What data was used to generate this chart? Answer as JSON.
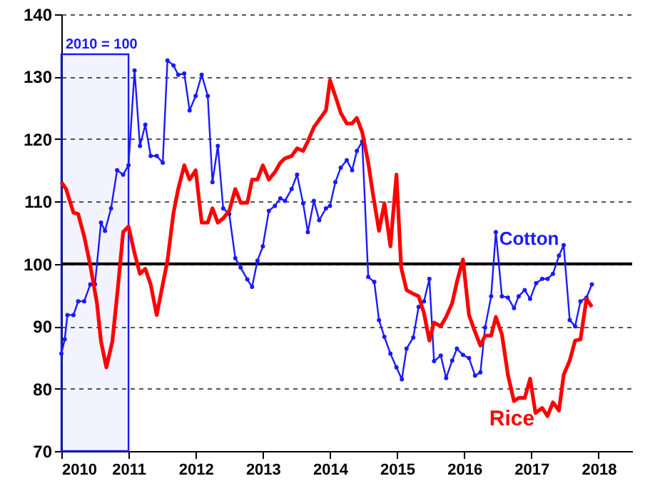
{
  "chart_data": {
    "type": "line",
    "xlim": [
      2010,
      2018.5
    ],
    "xticks": [
      2010,
      2011,
      2012,
      2013,
      2014,
      2015,
      2016,
      2017,
      2018
    ],
    "ylim": [
      70,
      140
    ],
    "yticks": [
      70,
      80,
      90,
      100,
      110,
      120,
      130,
      140
    ],
    "grid": "y",
    "line_style": "solid",
    "ref_lines": [
      {
        "axis": "y",
        "value": 100,
        "color": "#000000"
      }
    ],
    "bands": [
      {
        "axis": "x",
        "from": 2010,
        "to": 2011,
        "label": "2010 = 100",
        "color": "#1a1aff"
      }
    ],
    "series": [
      {
        "name": "Cotton",
        "color": "#1a1aff",
        "marker": "circle",
        "x": [
          2010.0,
          2010.05,
          2010.09,
          2010.18,
          2010.25,
          2010.34,
          2010.43,
          2010.5,
          2010.59,
          2010.65,
          2010.74,
          2010.83,
          2010.92,
          2011.0,
          2011.09,
          2011.17,
          2011.25,
          2011.33,
          2011.42,
          2011.51,
          2011.58,
          2011.67,
          2011.74,
          2011.83,
          2011.91,
          2012.0,
          2012.09,
          2012.18,
          2012.25,
          2012.33,
          2012.41,
          2012.5,
          2012.59,
          2012.67,
          2012.77,
          2012.84,
          2012.92,
          2013.0,
          2013.09,
          2013.18,
          2013.26,
          2013.33,
          2013.43,
          2013.51,
          2013.6,
          2013.67,
          2013.76,
          2013.84,
          2013.94,
          2014.0,
          2014.08,
          2014.16,
          2014.25,
          2014.33,
          2014.4,
          2014.48,
          2014.57,
          2014.66,
          2014.73,
          2014.81,
          2014.9,
          2014.99,
          2015.07,
          2015.14,
          2015.24,
          2015.32,
          2015.4,
          2015.48,
          2015.55,
          2015.65,
          2015.73,
          2015.82,
          2015.89,
          2015.98,
          2016.07,
          2016.16,
          2016.24,
          2016.31,
          2016.4,
          2016.47,
          2016.56,
          2016.65,
          2016.74,
          2016.81,
          2016.9,
          2016.98,
          2017.07,
          2017.16,
          2017.24,
          2017.32,
          2017.41,
          2017.48,
          2017.57,
          2017.65,
          2017.73,
          2017.82,
          2017.9
        ],
        "values": [
          85.6,
          87.9,
          91.8,
          91.8,
          94,
          94,
          96.7,
          96.7,
          106.6,
          105.3,
          108.9,
          115,
          114.3,
          115.8,
          131,
          118.9,
          122.3,
          117.3,
          117.3,
          116.2,
          132.6,
          131.8,
          130.3,
          130.5,
          124.6,
          126.9,
          130.3,
          126.9,
          113.1,
          118.9,
          108.9,
          108,
          100.9,
          99.4,
          97.5,
          96.3,
          100.5,
          102.8,
          108.5,
          109.3,
          110.5,
          110.1,
          112,
          114.3,
          109.7,
          105.1,
          110.1,
          107,
          108.9,
          109.3,
          113.1,
          115.4,
          116.6,
          115,
          118.1,
          119.6,
          97.9,
          97.1,
          91,
          88.3,
          85.6,
          83.4,
          81.5,
          86.4,
          88.2,
          93.1,
          94,
          97.6,
          84.4,
          85.3,
          81.7,
          84.5,
          86.4,
          85.4,
          84.9,
          82.1,
          82.6,
          89.8,
          94.8,
          105.1,
          94.8,
          94.6,
          92.9,
          94.8,
          95.8,
          94.4,
          96.9,
          97.6,
          97.6,
          98.4,
          101.3,
          103,
          91,
          90,
          94,
          94.6,
          96.7
        ]
      },
      {
        "name": "Rice",
        "color": "#ff0000",
        "marker": "none",
        "x": [
          2010.0,
          2010.07,
          2010.18,
          2010.25,
          2010.34,
          2010.43,
          2010.53,
          2010.59,
          2010.67,
          2010.76,
          2010.84,
          2010.92,
          2011.0,
          2011.09,
          2011.17,
          2011.25,
          2011.33,
          2011.42,
          2011.51,
          2011.58,
          2011.67,
          2011.74,
          2011.83,
          2011.91,
          2012.0,
          2012.09,
          2012.18,
          2012.25,
          2012.33,
          2012.41,
          2012.5,
          2012.59,
          2012.67,
          2012.77,
          2012.84,
          2012.92,
          2013.0,
          2013.09,
          2013.18,
          2013.26,
          2013.33,
          2013.43,
          2013.51,
          2013.6,
          2013.67,
          2013.76,
          2013.84,
          2013.94,
          2014.0,
          2014.08,
          2014.16,
          2014.25,
          2014.33,
          2014.4,
          2014.48,
          2014.57,
          2014.64,
          2014.73,
          2014.81,
          2014.9,
          2014.99,
          2015.06,
          2015.14,
          2015.24,
          2015.32,
          2015.4,
          2015.48,
          2015.55,
          2015.65,
          2015.73,
          2015.82,
          2015.89,
          2015.98,
          2016.07,
          2016.16,
          2016.24,
          2016.31,
          2016.4,
          2016.47,
          2016.56,
          2016.65,
          2016.74,
          2016.81,
          2016.9,
          2016.98,
          2017.06,
          2017.16,
          2017.24,
          2017.32,
          2017.41,
          2017.48,
          2017.57,
          2017.65,
          2017.73,
          2017.82,
          2017.9
        ],
        "values": [
          113.1,
          112,
          108.2,
          108,
          104.4,
          99.8,
          93.7,
          87.6,
          83.4,
          87.6,
          96,
          105.1,
          106,
          101.7,
          98.4,
          99.2,
          96.7,
          91.8,
          96.7,
          100.5,
          108.2,
          112,
          115.8,
          113.5,
          115,
          106.6,
          106.6,
          108.9,
          106.6,
          107.3,
          108.5,
          112,
          109.8,
          109.8,
          113.5,
          113.5,
          115.8,
          113.5,
          114.7,
          116.2,
          116.9,
          117.3,
          118.5,
          118.1,
          119.6,
          121.9,
          123.1,
          124.6,
          129.4,
          126.9,
          124.2,
          122.5,
          122.5,
          123.4,
          121.1,
          116.2,
          111.2,
          105.3,
          109.7,
          102.8,
          114.3,
          99.4,
          95.8,
          95.2,
          94.8,
          92.1,
          87.7,
          90.6,
          90,
          91.5,
          93.7,
          97.1,
          100.7,
          91.8,
          89.1,
          86.9,
          88.5,
          88.5,
          91.5,
          88.7,
          82.2,
          78,
          78.5,
          78.5,
          81.6,
          76.1,
          76.9,
          75.6,
          77.8,
          76.5,
          82.2,
          84.5,
          87.7,
          87.9,
          94.4,
          93.1
        ]
      }
    ]
  }
}
